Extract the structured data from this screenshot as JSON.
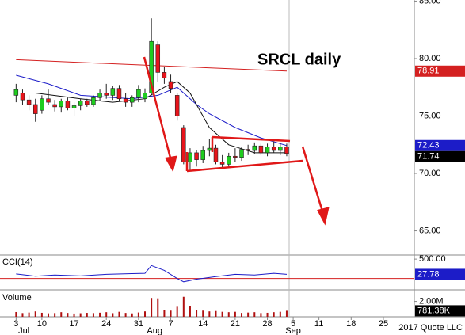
{
  "chart_data": [
    {
      "type": "candlestick",
      "title": "SRCL daily",
      "x": [
        0,
        1,
        2,
        3,
        4,
        5,
        6,
        7,
        8,
        9,
        10,
        11,
        12,
        13,
        14,
        15,
        16,
        17,
        18,
        19,
        20,
        21,
        22,
        23,
        24,
        25,
        26,
        27,
        28,
        29,
        30,
        31,
        32,
        33,
        34,
        35,
        36,
        37,
        38,
        39,
        40,
        41,
        42
      ],
      "open": [
        76.8,
        77.0,
        76.4,
        76.0,
        75.5,
        76.5,
        76.0,
        75.8,
        76.3,
        75.7,
        75.9,
        76.3,
        76.0,
        76.6,
        77.0,
        76.8,
        77.4,
        76.5,
        76.2,
        76.6,
        76.5,
        77.0,
        81.2,
        78.8,
        78.0,
        76.8,
        74.0,
        71.0,
        71.8,
        71.2,
        72.0,
        72.2,
        71.0,
        70.8,
        71.5,
        71.4,
        72.1,
        72.0,
        72.4,
        71.8,
        72.3,
        72.0,
        72.3
      ],
      "high": [
        77.8,
        77.3,
        76.8,
        76.5,
        76.8,
        77.3,
        76.4,
        76.5,
        76.6,
        76.2,
        76.5,
        76.5,
        76.8,
        77.3,
        77.8,
        77.6,
        77.7,
        77.0,
        76.8,
        77.7,
        77.4,
        83.5,
        81.5,
        79.3,
        78.6,
        77.0,
        74.2,
        72.2,
        72.0,
        72.4,
        73.0,
        72.5,
        71.6,
        71.8,
        72.2,
        72.3,
        72.5,
        72.7,
        72.6,
        72.6,
        72.8,
        72.6,
        72.6
      ],
      "low": [
        76.2,
        76.0,
        75.5,
        74.5,
        75.2,
        76.0,
        75.4,
        75.3,
        75.5,
        75.0,
        75.5,
        75.8,
        75.8,
        76.3,
        76.5,
        76.4,
        76.3,
        75.8,
        75.8,
        76.2,
        76.2,
        76.8,
        78.0,
        77.8,
        77.0,
        74.6,
        70.8,
        70.3,
        70.6,
        70.9,
        71.5,
        70.8,
        70.4,
        70.5,
        71.0,
        71.1,
        71.6,
        71.7,
        71.6,
        71.5,
        71.8,
        71.6,
        71.5
      ],
      "close": [
        77.3,
        76.4,
        76.0,
        75.2,
        76.5,
        76.2,
        75.8,
        76.3,
        75.7,
        75.9,
        76.3,
        76.0,
        76.6,
        77.0,
        76.8,
        77.4,
        76.5,
        76.2,
        76.6,
        77.3,
        77.0,
        81.5,
        78.8,
        78.3,
        77.4,
        75.0,
        71.0,
        71.8,
        71.2,
        72.0,
        72.2,
        71.0,
        70.8,
        71.5,
        71.4,
        72.1,
        72.0,
        72.4,
        71.8,
        72.3,
        72.0,
        72.3,
        71.74
      ],
      "last_label": "71.74",
      "up_color": "#1fcc1f",
      "down_color": "#e8141b",
      "overlays": [
        {
          "color": "#d42020",
          "x": [
            0,
            42
          ],
          "values": [
            79.9,
            78.91
          ],
          "last_label": "78.91"
        },
        {
          "color": "#1c1cc8",
          "x": [
            0,
            5,
            10,
            18,
            22,
            25,
            28,
            30,
            34,
            38,
            42
          ],
          "values": [
            78.55,
            77.8,
            76.8,
            76.5,
            76.8,
            77.5,
            76.0,
            75.2,
            74.0,
            73.1,
            72.43
          ],
          "last_label": "72.43"
        },
        {
          "color": "#111111",
          "x": [
            3,
            10,
            15,
            20,
            23,
            25,
            27,
            30,
            33,
            37,
            42
          ],
          "values": [
            77.0,
            76.5,
            76.2,
            76.5,
            77.5,
            78.0,
            77.0,
            74.0,
            72.5,
            71.8,
            71.8
          ]
        }
      ],
      "xlim": [
        -2.5,
        61.8
      ],
      "ylim": [
        62.9,
        85.1
      ],
      "yticks": [
        {
          "value": 65,
          "label": "65.00"
        },
        {
          "value": 70,
          "label": "70.00"
        },
        {
          "value": 75,
          "label": "75.00"
        },
        {
          "value": 80,
          "label": "80.00"
        },
        {
          "value": 85,
          "label": "85.00"
        }
      ]
    },
    {
      "type": "line",
      "title": "CCI(14)",
      "color": "#1c1cc8",
      "x": [
        0,
        3,
        6,
        10,
        14,
        18,
        20,
        21,
        23,
        25,
        26,
        28,
        31,
        34,
        37,
        40,
        42
      ],
      "values": [
        40,
        -30,
        10,
        -20,
        30,
        50,
        60,
        300,
        150,
        -100,
        -200,
        -120,
        -40,
        30,
        10,
        60,
        27.78
      ],
      "last_label": "27.78",
      "reference_lines": [
        100,
        -100
      ],
      "reference_color": "#d42020",
      "xlim": [
        -2.5,
        61.8
      ],
      "ylim": [
        -450,
        625
      ],
      "yticks": [
        {
          "value": 500,
          "label": "500.00"
        }
      ]
    },
    {
      "type": "bar",
      "title": "Volume",
      "color": "#b01010",
      "x": [
        0,
        1,
        2,
        3,
        4,
        5,
        6,
        7,
        8,
        9,
        10,
        11,
        12,
        13,
        14,
        15,
        16,
        17,
        18,
        19,
        20,
        21,
        22,
        23,
        24,
        25,
        26,
        27,
        28,
        29,
        30,
        31,
        32,
        33,
        34,
        35,
        36,
        37,
        38,
        39,
        40,
        41,
        42
      ],
      "values": [
        620000,
        480000,
        550000,
        700000,
        520000,
        450000,
        480000,
        600000,
        500000,
        420000,
        460000,
        510000,
        480000,
        530000,
        600000,
        470000,
        650000,
        500000,
        440000,
        560000,
        700000,
        2450000,
        2400000,
        900000,
        800000,
        1300000,
        2600000,
        1400000,
        900000,
        800000,
        700000,
        750000,
        650000,
        600000,
        650000,
        500000,
        550000,
        600000,
        480000,
        520000,
        600000,
        650000,
        781380
      ],
      "last_label": "781.38K",
      "xlim": [
        -2.5,
        61.8
      ],
      "ylim": [
        0,
        3500000
      ],
      "yticks": [
        {
          "value": 2000000,
          "label": "2.00M"
        }
      ],
      "xticks": [
        {
          "value": 0,
          "label": "3"
        },
        {
          "value": 4,
          "label": "10"
        },
        {
          "value": 9,
          "label": "17"
        },
        {
          "value": 14,
          "label": "24"
        },
        {
          "value": 19,
          "label": "31"
        },
        {
          "value": 24,
          "label": "7"
        },
        {
          "value": 29,
          "label": "14"
        },
        {
          "value": 34,
          "label": "21"
        },
        {
          "value": 39,
          "label": "28"
        },
        {
          "value": 43,
          "label": "5"
        },
        {
          "value": 47,
          "label": "11"
        },
        {
          "value": 52,
          "label": "18"
        },
        {
          "value": 57,
          "label": "25"
        }
      ],
      "month_labels": [
        {
          "value": 1.2,
          "label": "Jul"
        },
        {
          "value": 21.5,
          "label": "Aug"
        },
        {
          "value": 43,
          "label": "Sep"
        }
      ],
      "footer": "2017 Quote LLC"
    }
  ]
}
